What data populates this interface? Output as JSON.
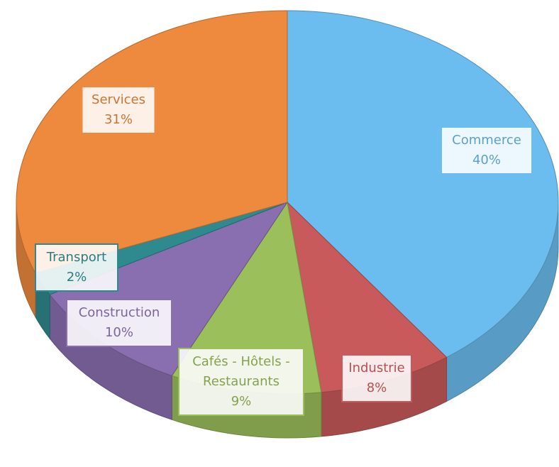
{
  "chart_data": {
    "type": "pie3d",
    "categories": [
      "Commerce",
      "Industrie",
      "Cafés - Hôtels - Restaurants",
      "Construction",
      "Transport",
      "Services"
    ],
    "values": [
      40,
      8,
      9,
      10,
      2,
      31
    ],
    "value_labels": [
      "40%",
      "8%",
      "9%",
      "10%",
      "2%",
      "31%"
    ],
    "colors": [
      "#6bbdf0",
      "#c95a5b",
      "#9bbf5a",
      "#8a6fb0",
      "#2f8a8f",
      "#ee8a3e"
    ]
  }
}
